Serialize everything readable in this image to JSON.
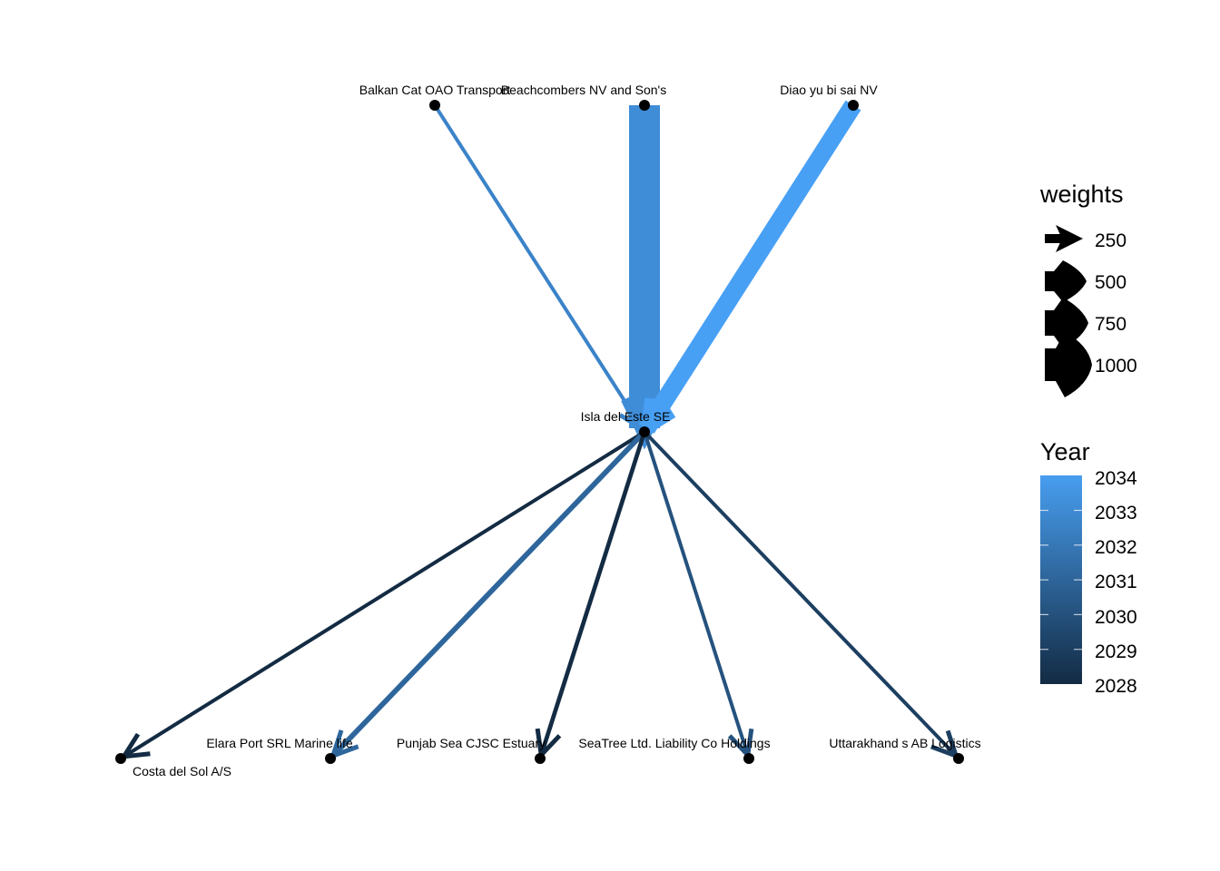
{
  "chart_data": {
    "type": "network",
    "nodes": [
      {
        "id": "balkan",
        "label": "Balkan Cat OAO Transport"
      },
      {
        "id": "beach",
        "label": "Beachcombers NV and Son's"
      },
      {
        "id": "diao",
        "label": "Diao yu bi sai  NV"
      },
      {
        "id": "isla",
        "label": "Isla del Este SE"
      },
      {
        "id": "costa",
        "label": "Costa del Sol A/S"
      },
      {
        "id": "elara",
        "label": "Elara Port SRL Marine life"
      },
      {
        "id": "punjab",
        "label": "Punjab Sea  CJSC Estuary"
      },
      {
        "id": "seatree",
        "label": "SeaTree Ltd. Liability Co Holdings"
      },
      {
        "id": "uttar",
        "label": "Uttarakhand s AB Logistics"
      }
    ],
    "edges": [
      {
        "from": "balkan",
        "to": "isla",
        "year": 2032.5,
        "weight": 150
      },
      {
        "from": "beach",
        "to": "isla",
        "year": 2033,
        "weight": 1000
      },
      {
        "from": "diao",
        "to": "isla",
        "year": 2034,
        "weight": 600
      },
      {
        "from": "isla",
        "to": "costa",
        "year": 2028,
        "weight": 150
      },
      {
        "from": "isla",
        "to": "elara",
        "year": 2031,
        "weight": 200
      },
      {
        "from": "isla",
        "to": "punjab",
        "year": 2028,
        "weight": 170
      },
      {
        "from": "isla",
        "to": "seatree",
        "year": 2030,
        "weight": 150
      },
      {
        "from": "isla",
        "to": "uttar",
        "year": 2029,
        "weight": 150
      }
    ],
    "legend_weights": {
      "title": "weights",
      "labels": [
        "250",
        "500",
        "750",
        "1000"
      ]
    },
    "legend_year": {
      "title": "Year",
      "labels": [
        "2034",
        "2033",
        "2032",
        "2031",
        "2030",
        "2029",
        "2028"
      ],
      "low_color": "#132B43",
      "high_color": "#56B1F7"
    },
    "legend_placement": "right"
  }
}
